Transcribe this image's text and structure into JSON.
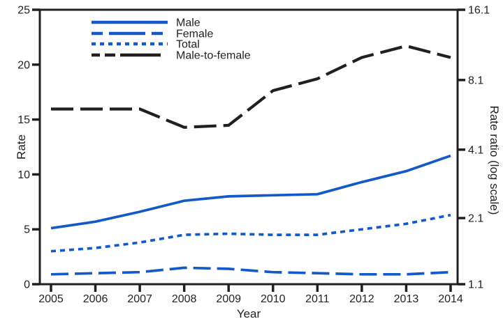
{
  "colors": {
    "ink": "#231F20",
    "series_blue": "#1359C7",
    "series_black": "#231F1F",
    "background": "#FFFFFF"
  },
  "chart_data": {
    "type": "line",
    "x": [
      "2005",
      "2006",
      "2007",
      "2008",
      "2009",
      "2010",
      "2011",
      "2012",
      "2013",
      "2014"
    ],
    "xlabel": "Year",
    "ylabel_left": "Rate",
    "ylabel_right": "Rate ratio (log scale)",
    "y_left_ticks": [
      0,
      5,
      10,
      15,
      20,
      25
    ],
    "y_left_range": [
      0,
      25
    ],
    "y_right_ticks": [
      "1.1",
      "2.1",
      "4.1",
      "8.1",
      "16.1"
    ],
    "y_right_range": [
      1.1,
      16.1
    ],
    "y_right_scale": "log",
    "grid": false,
    "legend_position": "top-left-inside",
    "series": [
      {
        "name": "Male",
        "axis": "left",
        "color": "#1359C7",
        "dash": "solid",
        "values": [
          5.1,
          5.7,
          6.6,
          7.6,
          8.0,
          8.1,
          8.2,
          9.3,
          10.3,
          11.7
        ]
      },
      {
        "name": "Female",
        "axis": "left",
        "color": "#1359C7",
        "dash": "long-dash",
        "values": [
          0.9,
          1.0,
          1.1,
          1.5,
          1.4,
          1.1,
          1.0,
          0.9,
          0.9,
          1.1
        ]
      },
      {
        "name": "Total",
        "axis": "left",
        "color": "#1359C7",
        "dash": "short-dash",
        "values": [
          3.0,
          3.3,
          3.8,
          4.5,
          4.6,
          4.5,
          4.5,
          5.0,
          5.5,
          6.3
        ]
      },
      {
        "name": "Male-to-female",
        "axis": "right",
        "color": "#231F1F",
        "dash": "long-dash",
        "values": [
          6.1,
          6.1,
          6.1,
          5.1,
          5.2,
          7.3,
          8.2,
          10.1,
          11.3,
          10.1
        ]
      }
    ]
  }
}
